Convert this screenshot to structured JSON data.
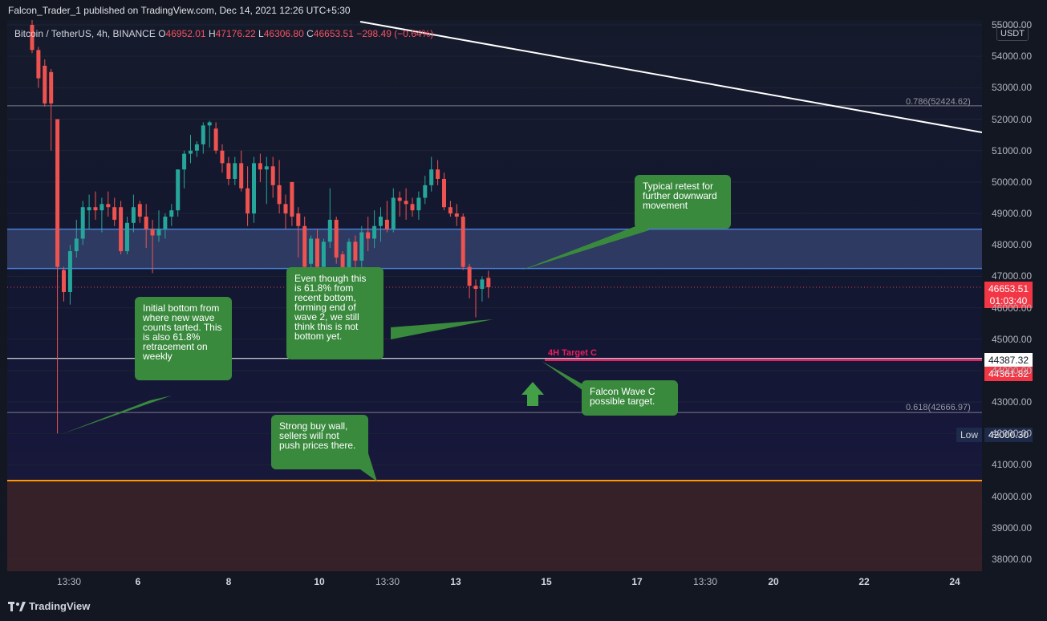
{
  "header": {
    "publisher": "Falcon_Trader_1 published on TradingView.com, Dec 14, 2021 12:26 UTC+5:30"
  },
  "symbol": {
    "name": "Bitcoin / TetherUS, 4h, BINANCE",
    "o_key": "O",
    "o": "46952.01",
    "h_key": "H",
    "h": "47176.22",
    "l_key": "L",
    "l": "46306.80",
    "c_key": "C",
    "c": "46653.51",
    "change": "−298.49 (−0.64%)"
  },
  "currency": "USDT",
  "colors": {
    "up": "#26a69a",
    "down": "#ef5350",
    "zone": "#4a7fd6",
    "target": "#e91e63",
    "support": "#ff9800",
    "callout": "#3a8a3e"
  },
  "annotations": {
    "fib_786": "0.786(52424.62)",
    "fib_618": "0.618(42666.97)",
    "target_label": "4H Target C",
    "low_label": "Low",
    "callout_initial": "Initial bottom from where new wave counts tarted. This is also 61.8% retracement on weekly",
    "callout_even": "Even though this is 61.8% from recent bottom, forming end of wave 2, we still think this is not bottom yet.",
    "callout_retest": "Typical retest for further downward movement",
    "callout_falcon": "Falcon Wave C possible target.",
    "callout_buywall": "Strong buy wall, sellers will not push prices there."
  },
  "price_tags": {
    "current": "46653.51",
    "countdown": "01:03:40",
    "white_line": "44387.32",
    "target": "44361.82",
    "low": "42000.30"
  },
  "footer": {
    "brand": "TradingView"
  },
  "chart_data": {
    "type": "candlestick",
    "title": "Bitcoin / TetherUS, 4h, BINANCE",
    "ylim": [
      37600,
      55000
    ],
    "y_ticks": [
      "55000.00",
      "54000.00",
      "53000.00",
      "52000.00",
      "51000.00",
      "50000.00",
      "49000.00",
      "48000.00",
      "47000.00",
      "46000.00",
      "45000.00",
      "44000.00",
      "43000.00",
      "42000.00",
      "41000.00",
      "40000.00",
      "39000.00",
      "38000.00"
    ],
    "x_ticks": [
      "13:30",
      "6",
      "8",
      "10",
      "13:30",
      "13",
      "15",
      "17",
      "13:30",
      "20",
      "22",
      "24"
    ],
    "x_ticks_bold": [
      false,
      true,
      true,
      true,
      false,
      true,
      true,
      true,
      false,
      true,
      true,
      true
    ],
    "candles": [
      {
        "o": 55000,
        "h": 55500,
        "l": 54100,
        "c": 54200
      },
      {
        "o": 54200,
        "h": 54300,
        "l": 53000,
        "c": 53300
      },
      {
        "o": 53700,
        "h": 53900,
        "l": 52400,
        "c": 52500
      },
      {
        "o": 53500,
        "h": 53600,
        "l": 51000,
        "c": 52500
      },
      {
        "o": 52000,
        "h": 52000,
        "l": 42000,
        "c": 47300
      },
      {
        "o": 47200,
        "h": 47300,
        "l": 46200,
        "c": 46500
      },
      {
        "o": 46500,
        "h": 48000,
        "l": 46100,
        "c": 47800
      },
      {
        "o": 47800,
        "h": 48800,
        "l": 47600,
        "c": 48200
      },
      {
        "o": 48200,
        "h": 49400,
        "l": 48000,
        "c": 49200
      },
      {
        "o": 49100,
        "h": 49600,
        "l": 48500,
        "c": 49200
      },
      {
        "o": 49200,
        "h": 49700,
        "l": 48800,
        "c": 49100
      },
      {
        "o": 49100,
        "h": 49500,
        "l": 48400,
        "c": 49300
      },
      {
        "o": 49300,
        "h": 49700,
        "l": 48900,
        "c": 49200
      },
      {
        "o": 49200,
        "h": 49500,
        "l": 48600,
        "c": 48800
      },
      {
        "o": 49200,
        "h": 49400,
        "l": 47700,
        "c": 47800
      },
      {
        "o": 47800,
        "h": 48900,
        "l": 47700,
        "c": 48700
      },
      {
        "o": 48700,
        "h": 49600,
        "l": 48400,
        "c": 49200
      },
      {
        "o": 49300,
        "h": 49400,
        "l": 48700,
        "c": 48900
      },
      {
        "o": 48900,
        "h": 49300,
        "l": 47900,
        "c": 48500
      },
      {
        "o": 48500,
        "h": 48800,
        "l": 47100,
        "c": 48300
      },
      {
        "o": 48300,
        "h": 49100,
        "l": 48100,
        "c": 48500
      },
      {
        "o": 48500,
        "h": 49000,
        "l": 48200,
        "c": 48900
      },
      {
        "o": 48900,
        "h": 49300,
        "l": 48600,
        "c": 49100
      },
      {
        "o": 49100,
        "h": 50400,
        "l": 48900,
        "c": 50400
      },
      {
        "o": 50400,
        "h": 51000,
        "l": 49800,
        "c": 50900
      },
      {
        "o": 50900,
        "h": 51500,
        "l": 50600,
        "c": 51000
      },
      {
        "o": 51000,
        "h": 51300,
        "l": 50800,
        "c": 51200
      },
      {
        "o": 51200,
        "h": 51900,
        "l": 50900,
        "c": 51800
      },
      {
        "o": 51800,
        "h": 51950,
        "l": 51100,
        "c": 51900
      },
      {
        "o": 51700,
        "h": 51900,
        "l": 50900,
        "c": 51000
      },
      {
        "o": 51000,
        "h": 51200,
        "l": 50300,
        "c": 50600
      },
      {
        "o": 50600,
        "h": 50800,
        "l": 49900,
        "c": 50100
      },
      {
        "o": 50100,
        "h": 50800,
        "l": 49900,
        "c": 50600
      },
      {
        "o": 50600,
        "h": 51000,
        "l": 49700,
        "c": 49800
      },
      {
        "o": 49800,
        "h": 50500,
        "l": 48600,
        "c": 49000
      },
      {
        "o": 49000,
        "h": 50800,
        "l": 48700,
        "c": 50600
      },
      {
        "o": 50600,
        "h": 50900,
        "l": 50000,
        "c": 50400
      },
      {
        "o": 50400,
        "h": 50800,
        "l": 49300,
        "c": 50500
      },
      {
        "o": 50500,
        "h": 50800,
        "l": 49500,
        "c": 49900
      },
      {
        "o": 49900,
        "h": 50700,
        "l": 49000,
        "c": 49300
      },
      {
        "o": 49300,
        "h": 49600,
        "l": 48500,
        "c": 49000
      },
      {
        "o": 50000,
        "h": 50000,
        "l": 48600,
        "c": 48900
      },
      {
        "o": 49000,
        "h": 49200,
        "l": 47600,
        "c": 48600
      },
      {
        "o": 48600,
        "h": 48900,
        "l": 47200,
        "c": 47300
      },
      {
        "o": 47400,
        "h": 48300,
        "l": 47100,
        "c": 48200
      },
      {
        "o": 48200,
        "h": 48500,
        "l": 47200,
        "c": 47300
      },
      {
        "o": 47300,
        "h": 48200,
        "l": 47000,
        "c": 48100
      },
      {
        "o": 48100,
        "h": 49800,
        "l": 47900,
        "c": 48800
      },
      {
        "o": 48800,
        "h": 48900,
        "l": 47400,
        "c": 47600
      },
      {
        "o": 47700,
        "h": 47800,
        "l": 46700,
        "c": 46800
      },
      {
        "o": 46800,
        "h": 48200,
        "l": 46600,
        "c": 48100
      },
      {
        "o": 48100,
        "h": 48300,
        "l": 47300,
        "c": 47500
      },
      {
        "o": 47500,
        "h": 48600,
        "l": 47200,
        "c": 48400
      },
      {
        "o": 48400,
        "h": 48900,
        "l": 47800,
        "c": 48200
      },
      {
        "o": 48200,
        "h": 49100,
        "l": 47900,
        "c": 48600
      },
      {
        "o": 48600,
        "h": 49200,
        "l": 48100,
        "c": 48900
      },
      {
        "o": 48800,
        "h": 49400,
        "l": 48400,
        "c": 48500
      },
      {
        "o": 48500,
        "h": 49800,
        "l": 48400,
        "c": 49500
      },
      {
        "o": 49500,
        "h": 49700,
        "l": 48900,
        "c": 49400
      },
      {
        "o": 49400,
        "h": 49800,
        "l": 48800,
        "c": 49300
      },
      {
        "o": 49300,
        "h": 49500,
        "l": 48900,
        "c": 49100
      },
      {
        "o": 49100,
        "h": 49700,
        "l": 48800,
        "c": 49500
      },
      {
        "o": 49500,
        "h": 50200,
        "l": 49300,
        "c": 49900
      },
      {
        "o": 49900,
        "h": 50800,
        "l": 49700,
        "c": 50400
      },
      {
        "o": 50400,
        "h": 50700,
        "l": 49900,
        "c": 50100
      },
      {
        "o": 50100,
        "h": 50300,
        "l": 49100,
        "c": 49200
      },
      {
        "o": 49200,
        "h": 49400,
        "l": 48900,
        "c": 49000
      },
      {
        "o": 49000,
        "h": 49300,
        "l": 48600,
        "c": 48900
      },
      {
        "o": 48900,
        "h": 49000,
        "l": 47200,
        "c": 47300
      },
      {
        "o": 47300,
        "h": 47400,
        "l": 46300,
        "c": 46700
      },
      {
        "o": 46700,
        "h": 46900,
        "l": 45700,
        "c": 46600
      },
      {
        "o": 46600,
        "h": 47000,
        "l": 46200,
        "c": 46900
      },
      {
        "o": 46952.01,
        "h": 47176.22,
        "l": 46306.8,
        "c": 46653.51
      }
    ],
    "lines": [
      {
        "name": "zone-top",
        "price": 48500
      },
      {
        "name": "zone-bottom",
        "price": 47250
      },
      {
        "name": "current",
        "price": 46653.51
      },
      {
        "name": "white",
        "price": 44387.32
      },
      {
        "name": "target",
        "price": 44361.82
      },
      {
        "name": "fib-786",
        "price": 52424.62
      },
      {
        "name": "fib-618",
        "price": 42666.97
      },
      {
        "name": "support",
        "price": 40500
      }
    ]
  }
}
